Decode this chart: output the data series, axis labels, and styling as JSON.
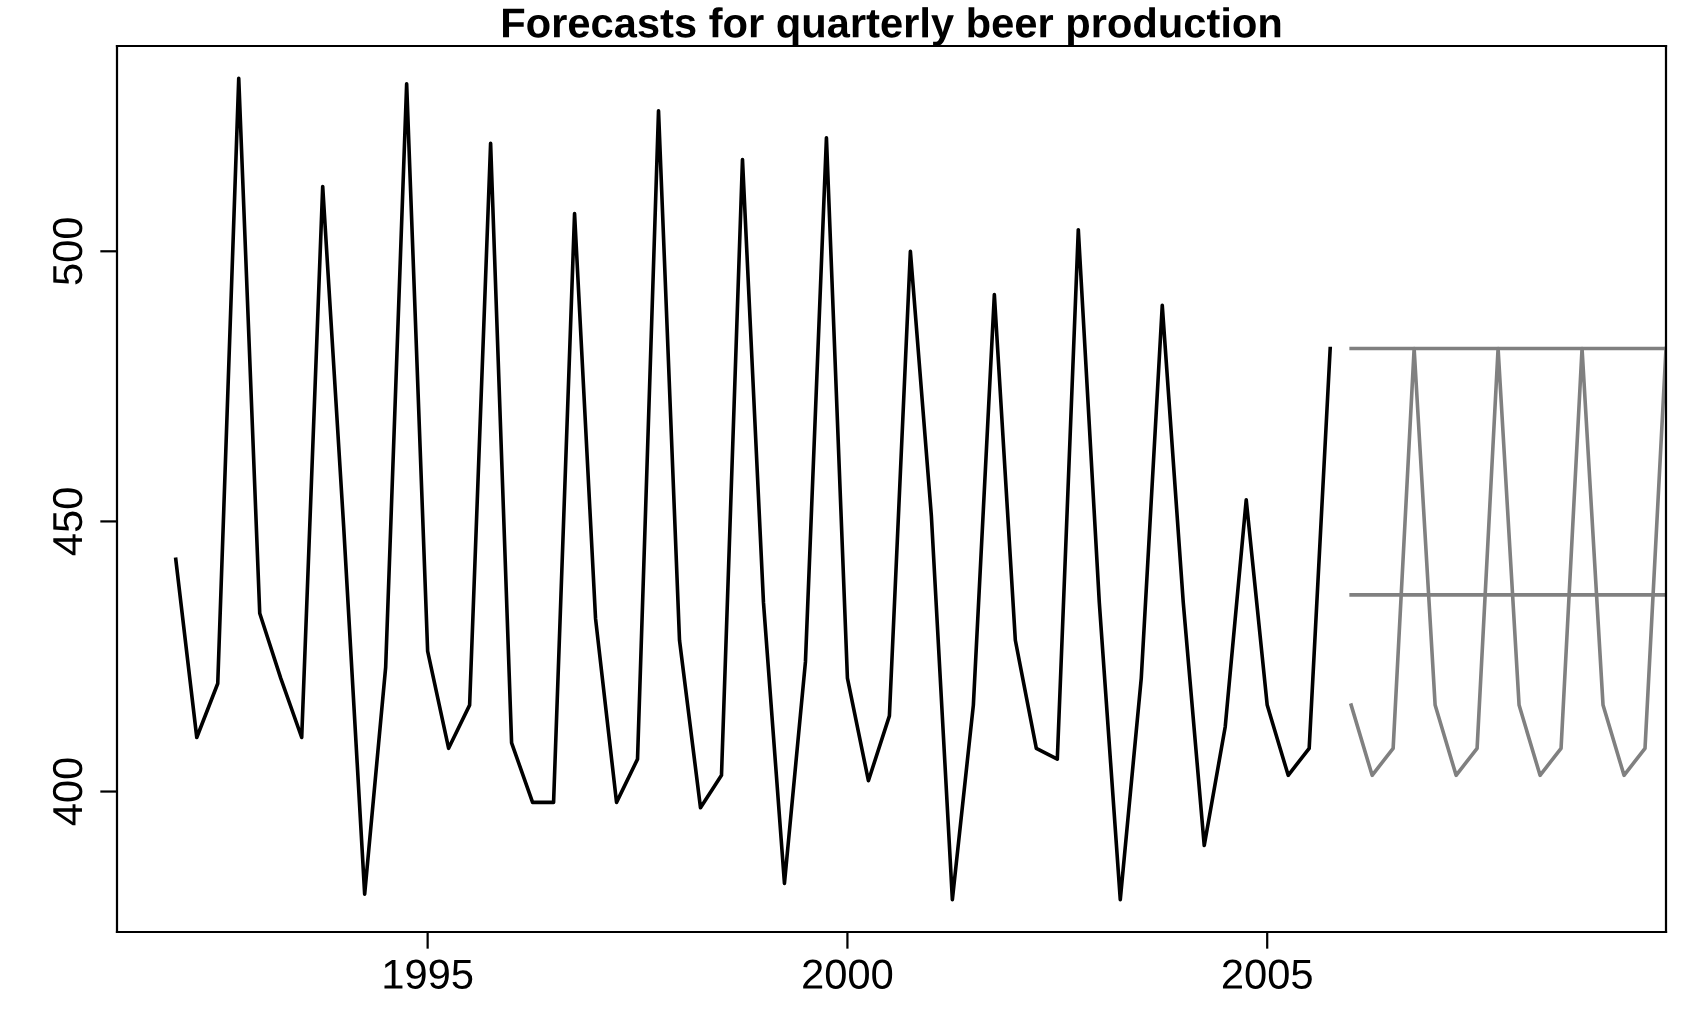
{
  "chart_data": {
    "type": "line",
    "title": "Forecasts for quarterly beer production",
    "series": [
      {
        "color": "#000000",
        "x": [
          1992.0,
          1992.25,
          1992.5,
          1992.75,
          1993.0,
          1993.25,
          1993.5,
          1993.75,
          1994.0,
          1994.25,
          1994.5,
          1994.75,
          1995.0,
          1995.25,
          1995.5,
          1995.75,
          1996.0,
          1996.25,
          1996.5,
          1996.75,
          1997.0,
          1997.25,
          1997.5,
          1997.75,
          1998.0,
          1998.25,
          1998.5,
          1998.75,
          1999.0,
          1999.25,
          1999.5,
          1999.75,
          2000.0,
          2000.25,
          2000.5,
          2000.75,
          2001.0,
          2001.25,
          2001.5,
          2001.75,
          2002.0,
          2002.25,
          2002.5,
          2002.75,
          2003.0,
          2003.25,
          2003.5,
          2003.75,
          2004.0,
          2004.25,
          2004.5,
          2004.75,
          2005.0,
          2005.25,
          2005.5,
          2005.75
        ],
        "values": [
          443,
          410,
          420,
          532,
          433,
          421,
          410,
          512,
          449,
          381,
          423,
          531,
          426,
          408,
          416,
          520,
          409,
          398,
          398,
          507,
          432,
          398,
          406,
          526,
          428,
          397,
          403,
          517,
          435,
          383,
          424,
          521,
          421,
          402,
          414,
          500,
          451,
          380,
          416,
          492,
          428,
          408,
          406,
          504,
          435,
          380,
          421,
          490,
          435,
          390,
          412,
          454,
          416,
          403,
          408,
          482
        ]
      },
      {
        "color": "#808080",
        "x": [
          2006.0,
          2009.75
        ],
        "values": [
          436.4,
          436.4
        ]
      },
      {
        "color": "#808080",
        "x": [
          2006.0,
          2009.75
        ],
        "values": [
          482,
          482
        ]
      },
      {
        "color": "#808080",
        "x": [
          2006.0,
          2006.25,
          2006.5,
          2006.75,
          2007.0,
          2007.25,
          2007.5,
          2007.75,
          2008.0,
          2008.25,
          2008.5,
          2008.75,
          2009.0,
          2009.25,
          2009.5,
          2009.75
        ],
        "values": [
          416,
          403,
          408,
          482,
          416,
          403,
          408,
          482,
          416,
          403,
          408,
          482,
          416,
          403,
          408,
          482
        ]
      }
    ],
    "xlim": [
      1991.3,
      2009.75
    ],
    "xticks": [
      1995,
      2000,
      2005
    ],
    "ylim": [
      374,
      538
    ],
    "yticks": [
      400,
      450,
      500
    ],
    "grid": false,
    "legend": false,
    "marker": "none",
    "line_style": "solid"
  }
}
